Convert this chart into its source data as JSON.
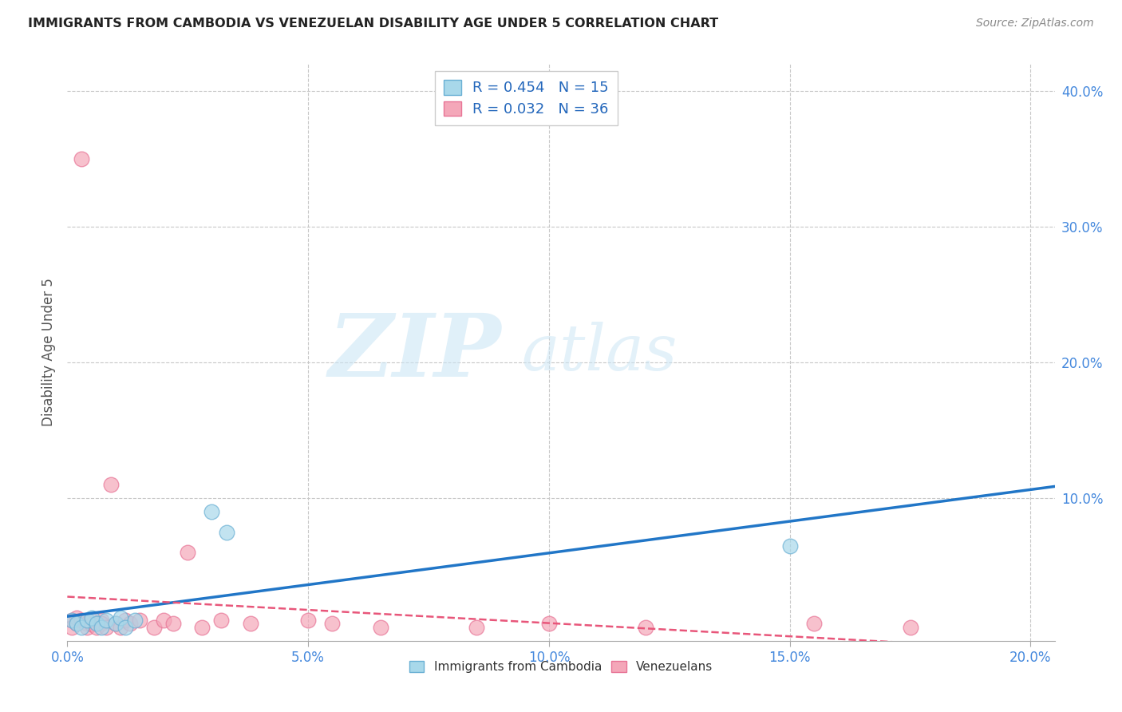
{
  "title": "IMMIGRANTS FROM CAMBODIA VS VENEZUELAN DISABILITY AGE UNDER 5 CORRELATION CHART",
  "source": "Source: ZipAtlas.com",
  "ylabel": "Disability Age Under 5",
  "xlim": [
    0.0,
    0.205
  ],
  "ylim": [
    -0.005,
    0.42
  ],
  "xticks": [
    0.0,
    0.05,
    0.1,
    0.15,
    0.2
  ],
  "yticks": [
    0.1,
    0.2,
    0.3,
    0.4
  ],
  "xtick_labels": [
    "0.0%",
    "5.0%",
    "10.0%",
    "15.0%",
    "20.0%"
  ],
  "ytick_labels": [
    "10.0%",
    "20.0%",
    "30.0%",
    "40.0%"
  ],
  "legend_R_cambodia": "R = 0.454",
  "legend_N_cambodia": "N = 15",
  "legend_R_venezuela": "R = 0.032",
  "legend_N_venezuela": "N = 36",
  "cambodia_color": "#a8d8ea",
  "cambodia_edge_color": "#6ab0d4",
  "venezuela_color": "#f4a7b9",
  "venezuela_edge_color": "#e87496",
  "trendline_cambodia_color": "#2176c7",
  "trendline_venezuela_color": "#e8567a",
  "background_color": "#ffffff",
  "grid_color": "#c8c8c8",
  "legend_cambodia_label": "Immigrants from Cambodia",
  "legend_venezuela_label": "Venezuelans",
  "cambodia_x": [
    0.001,
    0.002,
    0.003,
    0.004,
    0.005,
    0.006,
    0.007,
    0.008,
    0.01,
    0.011,
    0.012,
    0.014,
    0.03,
    0.033,
    0.15
  ],
  "cambodia_y": [
    0.01,
    0.008,
    0.005,
    0.01,
    0.012,
    0.008,
    0.005,
    0.01,
    0.008,
    0.012,
    0.005,
    0.01,
    0.09,
    0.075,
    0.065
  ],
  "venezuela_x": [
    0.001,
    0.001,
    0.002,
    0.002,
    0.003,
    0.003,
    0.004,
    0.004,
    0.005,
    0.005,
    0.006,
    0.006,
    0.007,
    0.007,
    0.008,
    0.009,
    0.01,
    0.011,
    0.012,
    0.013,
    0.015,
    0.018,
    0.02,
    0.022,
    0.025,
    0.028,
    0.032,
    0.038,
    0.05,
    0.055,
    0.065,
    0.085,
    0.1,
    0.12,
    0.155,
    0.175
  ],
  "venezuela_y": [
    0.01,
    0.005,
    0.008,
    0.012,
    0.35,
    0.01,
    0.008,
    0.005,
    0.01,
    0.007,
    0.008,
    0.005,
    0.01,
    0.008,
    0.005,
    0.11,
    0.008,
    0.005,
    0.01,
    0.008,
    0.01,
    0.005,
    0.01,
    0.008,
    0.06,
    0.005,
    0.01,
    0.008,
    0.01,
    0.008,
    0.005,
    0.005,
    0.008,
    0.005,
    0.008,
    0.005
  ]
}
